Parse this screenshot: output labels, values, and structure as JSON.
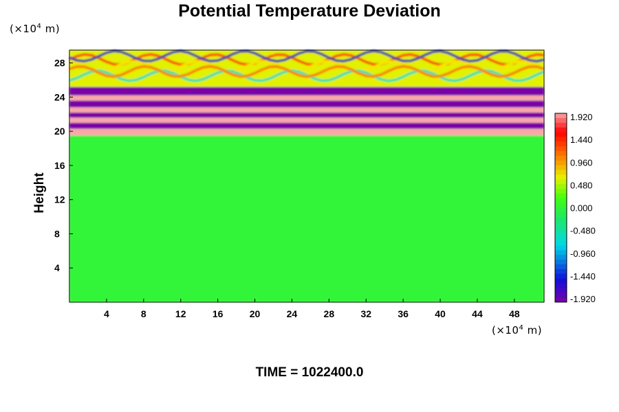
{
  "title": "Potential Temperature Deviation",
  "y_unit": {
    "prefix": "(×10",
    "exp": "4",
    "suffix": " m)"
  },
  "x_unit": {
    "prefix": "(×10",
    "exp": "4",
    "suffix": " m)"
  },
  "time_label": "TIME = 1022400.0",
  "chart_data": {
    "type": "heatmap",
    "title": "Potential Temperature Deviation",
    "xlabel": "",
    "ylabel": "Height",
    "x_unit": "×10^4 m",
    "y_unit": "×10^4 m",
    "xlim": [
      0,
      51.2
    ],
    "ylim": [
      0,
      29.5
    ],
    "x_ticks": [
      "4",
      "8",
      "12",
      "16",
      "20",
      "24",
      "28",
      "32",
      "36",
      "40",
      "44",
      "48"
    ],
    "y_ticks": [
      "4",
      "8",
      "12",
      "16",
      "20",
      "24",
      "28"
    ],
    "colorbar": {
      "range": [
        -1.92,
        1.92
      ],
      "labels": [
        "1.920",
        "1.440",
        "0.960",
        "0.480",
        "0.000",
        "-0.480",
        "-0.960",
        "-1.440",
        "-1.920"
      ]
    },
    "field_description_bands": [
      {
        "y_from": 0,
        "y_to": 19.5,
        "value": 0.0
      },
      {
        "y_from": 19.5,
        "y_to": 20.3,
        "value": 1.92
      },
      {
        "y_from": 20.3,
        "y_to": 21.0,
        "value": -1.92
      },
      {
        "y_from": 21.0,
        "y_to": 21.6,
        "value": 1.92
      },
      {
        "y_from": 21.6,
        "y_to": 22.2,
        "value": -1.92
      },
      {
        "y_from": 22.2,
        "y_to": 22.8,
        "value": 1.92
      },
      {
        "y_from": 22.8,
        "y_to": 23.6,
        "value": -1.92
      },
      {
        "y_from": 23.6,
        "y_to": 24.2,
        "value": 1.92
      },
      {
        "y_from": 24.2,
        "y_to": 25.2,
        "value": -1.92
      },
      {
        "y_from": 25.2,
        "y_to": 29.5,
        "value": 0.6
      }
    ]
  }
}
